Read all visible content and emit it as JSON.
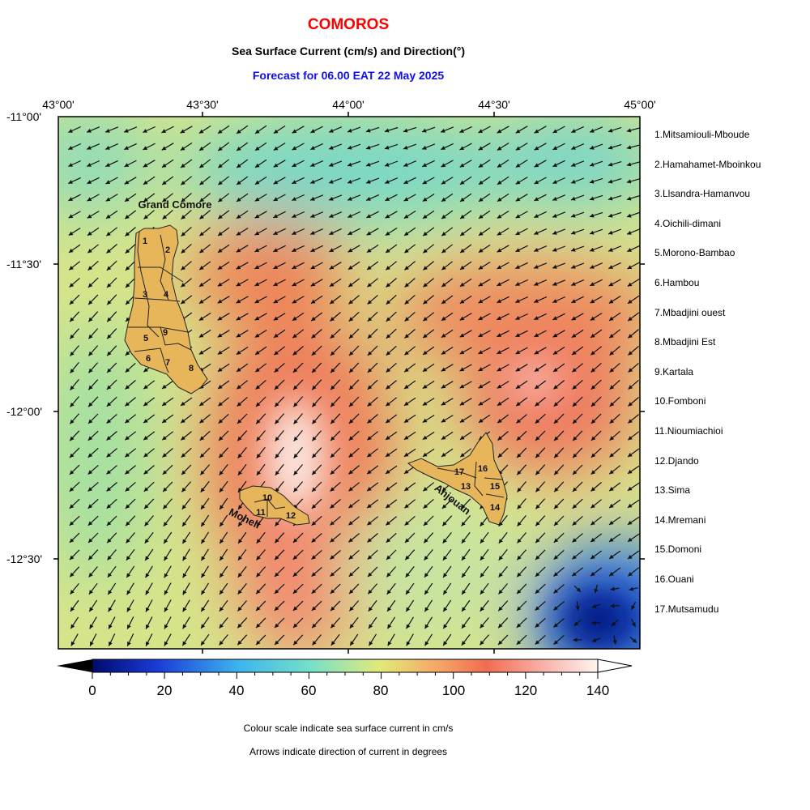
{
  "header": {
    "country": "COMOROS",
    "subtitle": "Sea Surface Current (cm/s) and Direction(°)",
    "forecast": "Forecast for  06.00 EAT 22 May 2025"
  },
  "axes": {
    "lon_labels": [
      "43°00'",
      "43°30'",
      "44°00'",
      "44°30'",
      "45°00'"
    ],
    "lat_labels": [
      "-11°00'",
      "-11°30'",
      "-12°00'",
      "-12°30'"
    ],
    "lon_range": [
      43.0,
      45.0
    ],
    "lat_range": [
      -11.0,
      -12.8
    ]
  },
  "map": {
    "island_labels": [
      "Grand Comore",
      "Moheli",
      "Anjouan"
    ],
    "district_numbers": [
      "1",
      "2",
      "3",
      "4",
      "5",
      "6",
      "7",
      "8",
      "9",
      "10",
      "11",
      "12",
      "13",
      "14",
      "15",
      "16",
      "17"
    ],
    "island_fill": "#e8b65a",
    "dominant_current_direction": "toward south-west",
    "calm_zone": "south-east corner (below 20 cm/s)",
    "fast_zone": "west of Anjouan, north of Moheli (above 130 cm/s)"
  },
  "districts": [
    "1.Mitsamiouli-Mboude",
    "2.Hamahamet-Mboinkou",
    "3.Llsandra-Hamanvou",
    "4.Oichili-dimani",
    "5.Morono-Bambao",
    "6.Hambou",
    "7.Mbadjini ouest",
    "8.Mbadjini Est",
    "9.Kartala",
    "10.Fomboni",
    "11.Nioumiachioi",
    "12.Djando",
    "13.Sima",
    "14.Mremani",
    "15.Domoni",
    "16.Ouani",
    "17.Mutsamudu"
  ],
  "colorbar": {
    "ticks": [
      "0",
      "20",
      "40",
      "60",
      "80",
      "100",
      "120",
      "140"
    ],
    "range": [
      0,
      140
    ],
    "colors": [
      "#000a6e",
      "#1a3cd8",
      "#3eb4ee",
      "#74e0c8",
      "#e2ea78",
      "#f5a868",
      "#f26c50",
      "#f8b0a8",
      "#fff4f0"
    ]
  },
  "notes": {
    "line1": "Colour scale indicate sea surface current in cm/s",
    "line2": "Arrows indicate direction of current in degrees"
  }
}
